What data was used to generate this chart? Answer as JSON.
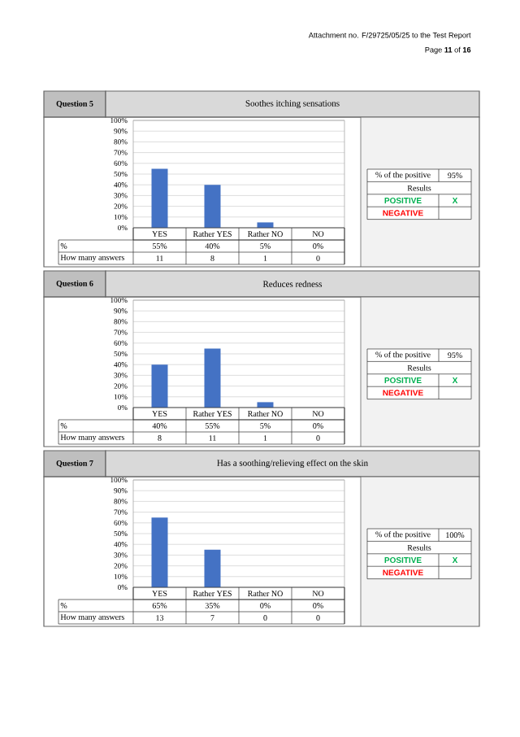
{
  "chart_data": [
    {
      "type": "bar",
      "title": "Soothes itching sensations",
      "subtitle": "Question 5",
      "categories": [
        "YES",
        "Rather YES",
        "Rather NO",
        "NO"
      ],
      "values": [
        55,
        40,
        5,
        0
      ],
      "value_labels": [
        "55%",
        "40%",
        "5%",
        "0%"
      ],
      "color": "#4472c4",
      "ylim": [
        0,
        100
      ],
      "yticks": [
        {
          "value": 0,
          "label": "0%"
        },
        {
          "value": 10,
          "label": "10%"
        },
        {
          "value": 20,
          "label": "20%"
        },
        {
          "value": 30,
          "label": "30%"
        },
        {
          "value": 40,
          "label": "40%"
        },
        {
          "value": 50,
          "label": "50%"
        },
        {
          "value": 60,
          "label": "60%"
        },
        {
          "value": 70,
          "label": "70%"
        },
        {
          "value": 80,
          "label": "80%"
        },
        {
          "value": 90,
          "label": "90%"
        },
        {
          "value": 100,
          "label": "100%"
        }
      ],
      "grid": "y",
      "annotations": [
        "%",
        "How many answers",
        "11",
        "8",
        "1",
        "0",
        "% of the positive",
        "95%",
        "Results",
        "POSITIVE",
        "X",
        "NEGATIVE",
        "Attachment no. F/29725/05/25 to the Test Report",
        "Page **11** of **16**"
      ]
    },
    {
      "type": "bar",
      "title": "Reduces redness",
      "subtitle": "Question 6",
      "categories": [
        "YES",
        "Rather YES",
        "Rather NO",
        "NO"
      ],
      "values": [
        40,
        55,
        5,
        0
      ],
      "value_labels": [
        "40%",
        "55%",
        "5%",
        "0%"
      ],
      "color": "#4472c4",
      "ylim": [
        0,
        100
      ],
      "yticks": [
        {
          "value": 0,
          "label": "0%"
        },
        {
          "value": 10,
          "label": "10%"
        },
        {
          "value": 20,
          "label": "20%"
        },
        {
          "value": 30,
          "label": "30%"
        },
        {
          "value": 40,
          "label": "40%"
        },
        {
          "value": 50,
          "label": "50%"
        },
        {
          "value": 60,
          "label": "60%"
        },
        {
          "value": 70,
          "label": "70%"
        },
        {
          "value": 80,
          "label": "80%"
        },
        {
          "value": 90,
          "label": "90%"
        },
        {
          "value": 100,
          "label": "100%"
        }
      ],
      "grid": "y",
      "annotations": [
        "%",
        "How many answers",
        "8",
        "11",
        "1",
        "0",
        "% of the positive",
        "95%",
        "Results",
        "POSITIVE",
        "X",
        "NEGATIVE"
      ]
    },
    {
      "type": "bar",
      "title": "Has a soothing/relieving effect on the skin",
      "subtitle": "Question 7",
      "categories": [
        "YES",
        "Rather YES",
        "Rather NO",
        "NO"
      ],
      "values": [
        65,
        35,
        0,
        0
      ],
      "value_labels": [
        "65%",
        "35%",
        "0%",
        "0%"
      ],
      "color": "#4472c4",
      "ylim": [
        0,
        100
      ],
      "yticks": [
        {
          "value": 0,
          "label": "0%"
        },
        {
          "value": 10,
          "label": "10%"
        },
        {
          "value": 20,
          "label": "20%"
        },
        {
          "value": 30,
          "label": "30%"
        },
        {
          "value": 40,
          "label": "40%"
        },
        {
          "value": 50,
          "label": "50%"
        },
        {
          "value": 60,
          "label": "60%"
        },
        {
          "value": 70,
          "label": "70%"
        },
        {
          "value": 80,
          "label": "80%"
        },
        {
          "value": 90,
          "label": "90%"
        },
        {
          "value": 100,
          "label": "100%"
        }
      ],
      "grid": "y",
      "annotations": [
        "%",
        "How many answers",
        "13",
        "7",
        "0",
        "0",
        "% of the positive",
        "100%",
        "Results",
        "POSITIVE",
        "X",
        "NEGATIVE"
      ]
    }
  ]
}
